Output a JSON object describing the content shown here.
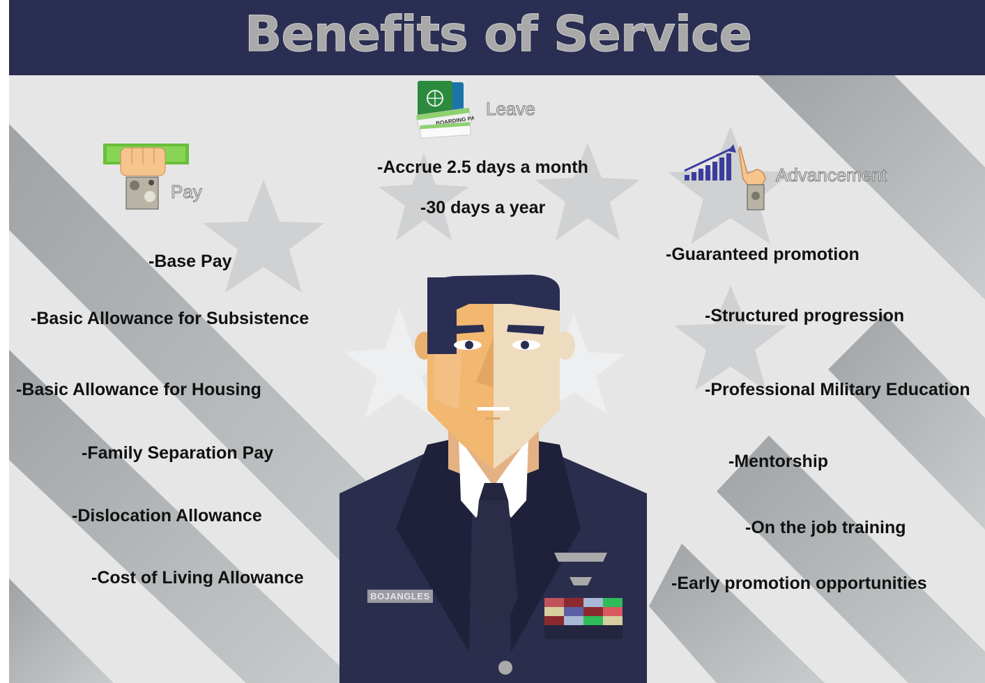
{
  "title": "Benefits of Service",
  "sections": {
    "pay": {
      "label": "Pay",
      "icon": "money-fist-icon",
      "items": [
        "-Base Pay",
        "-Basic Allowance for Subsistence",
        "-Basic Allowance for Housing",
        "-Family Separation Pay",
        "-Dislocation Allowance",
        "-Cost of Living Allowance"
      ]
    },
    "leave": {
      "label": "Leave",
      "icon": "passport-boarding-pass-icon",
      "items": [
        "-Accrue 2.5 days a month",
        "-30 days a year"
      ]
    },
    "advancement": {
      "label": "Advancement",
      "icon": "growth-chart-hand-icon",
      "items": [
        "-Guaranteed promotion",
        "-Structured progression",
        "-Professional Military Education",
        "-Mentorship",
        "-On the job training",
        "-Early promotion opportunities"
      ]
    }
  },
  "soldier": {
    "name_tag": "BOJANGLES"
  },
  "icon_text": {
    "boarding_pass": "BOARDING PASS"
  },
  "colors": {
    "header_bg": "#2a2e52",
    "title_text": "#a9a9a9",
    "background": "#e6e6e7",
    "stripe": "#b7bbbd",
    "uniform": "#2b2d4d"
  }
}
